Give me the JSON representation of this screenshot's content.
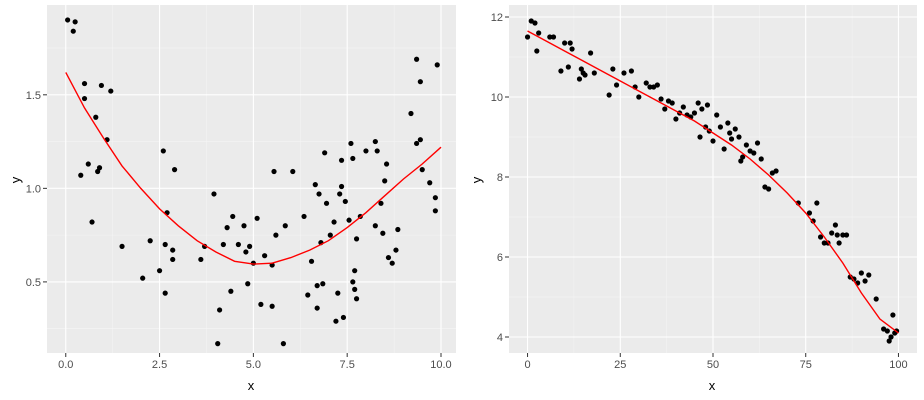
{
  "chart_data": [
    {
      "type": "scatter",
      "xlabel": "x",
      "ylabel": "y",
      "xlim": [
        -0.5,
        10.4
      ],
      "ylim": [
        0.12,
        1.98
      ],
      "xticks": [
        0.0,
        2.5,
        5.0,
        7.5,
        10.0
      ],
      "xtick_labels": [
        "0.0",
        "2.5",
        "5.0",
        "7.5",
        "10.0"
      ],
      "yticks": [
        0.5,
        1.0,
        1.5
      ],
      "ytick_labels": [
        "0.5",
        "1.0",
        "1.5"
      ],
      "grid": true,
      "fit_color": "#ff0000",
      "point_color": "#000000",
      "points": [
        [
          0.05,
          1.9
        ],
        [
          0.2,
          1.84
        ],
        [
          0.25,
          1.89
        ],
        [
          0.4,
          1.07
        ],
        [
          0.5,
          1.56
        ],
        [
          0.5,
          1.48
        ],
        [
          0.6,
          1.13
        ],
        [
          0.7,
          0.82
        ],
        [
          0.8,
          1.38
        ],
        [
          0.85,
          1.09
        ],
        [
          0.95,
          1.55
        ],
        [
          0.9,
          1.11
        ],
        [
          1.1,
          1.26
        ],
        [
          1.2,
          1.52
        ],
        [
          1.5,
          0.69
        ],
        [
          2.05,
          0.52
        ],
        [
          2.25,
          0.72
        ],
        [
          2.5,
          0.56
        ],
        [
          2.6,
          1.2
        ],
        [
          2.65,
          0.44
        ],
        [
          2.65,
          0.7
        ],
        [
          2.7,
          0.87
        ],
        [
          2.85,
          0.67
        ],
        [
          2.9,
          1.1
        ],
        [
          2.85,
          0.62
        ],
        [
          3.6,
          0.62
        ],
        [
          3.7,
          0.69
        ],
        [
          3.95,
          0.97
        ],
        [
          4.05,
          0.17
        ],
        [
          4.1,
          0.35
        ],
        [
          4.2,
          0.7
        ],
        [
          4.3,
          0.79
        ],
        [
          4.4,
          0.45
        ],
        [
          4.45,
          0.85
        ],
        [
          4.6,
          0.7
        ],
        [
          4.75,
          0.8
        ],
        [
          4.8,
          0.66
        ],
        [
          4.85,
          0.49
        ],
        [
          4.9,
          0.69
        ],
        [
          5.0,
          0.6
        ],
        [
          5.1,
          0.84
        ],
        [
          5.2,
          0.38
        ],
        [
          5.3,
          0.64
        ],
        [
          5.5,
          0.37
        ],
        [
          5.5,
          0.59
        ],
        [
          5.55,
          1.09
        ],
        [
          5.6,
          0.75
        ],
        [
          5.8,
          0.17
        ],
        [
          5.85,
          0.8
        ],
        [
          6.05,
          1.09
        ],
        [
          6.35,
          0.85
        ],
        [
          6.45,
          0.43
        ],
        [
          6.55,
          0.61
        ],
        [
          6.65,
          1.02
        ],
        [
          6.7,
          0.36
        ],
        [
          6.7,
          0.48
        ],
        [
          6.75,
          0.97
        ],
        [
          6.8,
          0.71
        ],
        [
          6.85,
          0.49
        ],
        [
          6.9,
          1.19
        ],
        [
          6.95,
          0.92
        ],
        [
          7.05,
          0.75
        ],
        [
          7.15,
          0.82
        ],
        [
          7.2,
          0.29
        ],
        [
          7.25,
          0.44
        ],
        [
          7.3,
          0.97
        ],
        [
          7.35,
          1.15
        ],
        [
          7.35,
          1.01
        ],
        [
          7.4,
          0.31
        ],
        [
          7.45,
          0.93
        ],
        [
          7.55,
          0.83
        ],
        [
          7.6,
          1.24
        ],
        [
          7.65,
          0.5
        ],
        [
          7.65,
          1.16
        ],
        [
          7.7,
          0.56
        ],
        [
          7.75,
          0.41
        ],
        [
          7.7,
          0.46
        ],
        [
          7.75,
          0.73
        ],
        [
          7.85,
          0.85
        ],
        [
          8.0,
          1.2
        ],
        [
          8.25,
          0.8
        ],
        [
          8.25,
          1.25
        ],
        [
          8.3,
          1.2
        ],
        [
          8.4,
          0.92
        ],
        [
          8.45,
          0.76
        ],
        [
          8.5,
          1.04
        ],
        [
          8.55,
          1.13
        ],
        [
          8.6,
          0.63
        ],
        [
          8.7,
          0.6
        ],
        [
          8.8,
          0.67
        ],
        [
          8.85,
          0.78
        ],
        [
          9.2,
          1.4
        ],
        [
          9.35,
          1.24
        ],
        [
          9.35,
          1.69
        ],
        [
          9.45,
          1.57
        ],
        [
          9.45,
          1.26
        ],
        [
          9.5,
          1.1
        ],
        [
          9.7,
          1.03
        ],
        [
          9.85,
          0.95
        ],
        [
          9.85,
          0.88
        ],
        [
          9.9,
          1.66
        ]
      ],
      "fit": [
        [
          0.0,
          1.62
        ],
        [
          0.5,
          1.43
        ],
        [
          1.0,
          1.27
        ],
        [
          1.5,
          1.12
        ],
        [
          2.0,
          1.0
        ],
        [
          2.5,
          0.89
        ],
        [
          3.0,
          0.8
        ],
        [
          3.5,
          0.72
        ],
        [
          4.0,
          0.66
        ],
        [
          4.5,
          0.61
        ],
        [
          5.0,
          0.595
        ],
        [
          5.5,
          0.6
        ],
        [
          6.0,
          0.63
        ],
        [
          6.5,
          0.67
        ],
        [
          7.0,
          0.72
        ],
        [
          7.5,
          0.79
        ],
        [
          8.0,
          0.87
        ],
        [
          8.5,
          0.96
        ],
        [
          9.0,
          1.05
        ],
        [
          9.5,
          1.13
        ],
        [
          10.0,
          1.22
        ]
      ]
    },
    {
      "type": "scatter",
      "xlabel": "x",
      "ylabel": "y",
      "xlim": [
        -5,
        105
      ],
      "ylim": [
        3.6,
        12.3
      ],
      "xticks": [
        0,
        25,
        50,
        75,
        100
      ],
      "xtick_labels": [
        "0",
        "25",
        "50",
        "75",
        "100"
      ],
      "yticks": [
        4,
        6,
        8,
        10,
        12
      ],
      "ytick_labels": [
        "4",
        "6",
        "8",
        "10",
        "12"
      ],
      "grid": true,
      "fit_color": "#ff0000",
      "point_color": "#000000",
      "points": [
        [
          0,
          11.5
        ],
        [
          1,
          11.9
        ],
        [
          2,
          11.85
        ],
        [
          2.5,
          11.15
        ],
        [
          3,
          11.6
        ],
        [
          6,
          11.5
        ],
        [
          7,
          11.5
        ],
        [
          9,
          10.65
        ],
        [
          10,
          11.35
        ],
        [
          11,
          10.75
        ],
        [
          11.5,
          11.35
        ],
        [
          12,
          11.2
        ],
        [
          14,
          10.45
        ],
        [
          14.5,
          10.7
        ],
        [
          15,
          10.6
        ],
        [
          15.5,
          10.55
        ],
        [
          17,
          11.1
        ],
        [
          18,
          10.6
        ],
        [
          22,
          10.05
        ],
        [
          23,
          10.7
        ],
        [
          24,
          10.3
        ],
        [
          26,
          10.6
        ],
        [
          28,
          10.65
        ],
        [
          29,
          10.25
        ],
        [
          30,
          10.0
        ],
        [
          32,
          10.35
        ],
        [
          33,
          10.25
        ],
        [
          34,
          10.25
        ],
        [
          35,
          10.3
        ],
        [
          36,
          9.95
        ],
        [
          37,
          9.7
        ],
        [
          38,
          9.9
        ],
        [
          39,
          9.85
        ],
        [
          40,
          9.45
        ],
        [
          41,
          9.6
        ],
        [
          42,
          9.75
        ],
        [
          43,
          9.55
        ],
        [
          44,
          9.5
        ],
        [
          45,
          9.6
        ],
        [
          46,
          9.85
        ],
        [
          46.5,
          9.0
        ],
        [
          47,
          9.7
        ],
        [
          48,
          9.25
        ],
        [
          48.5,
          9.8
        ],
        [
          49,
          9.15
        ],
        [
          50,
          8.9
        ],
        [
          51,
          9.55
        ],
        [
          52,
          9.25
        ],
        [
          53,
          8.7
        ],
        [
          54,
          9.35
        ],
        [
          54.5,
          9.1
        ],
        [
          55,
          8.95
        ],
        [
          56,
          9.2
        ],
        [
          57,
          9.0
        ],
        [
          57.5,
          8.4
        ],
        [
          58,
          8.5
        ],
        [
          59,
          8.8
        ],
        [
          60,
          8.65
        ],
        [
          61,
          8.6
        ],
        [
          62,
          8.85
        ],
        [
          63,
          8.45
        ],
        [
          64,
          7.75
        ],
        [
          65,
          7.7
        ],
        [
          66,
          8.1
        ],
        [
          67,
          8.15
        ],
        [
          73,
          7.35
        ],
        [
          76,
          7.1
        ],
        [
          77,
          6.9
        ],
        [
          78,
          7.35
        ],
        [
          79,
          6.5
        ],
        [
          80,
          6.35
        ],
        [
          81,
          6.35
        ],
        [
          82,
          6.6
        ],
        [
          83,
          6.8
        ],
        [
          83.5,
          6.55
        ],
        [
          84,
          6.35
        ],
        [
          85,
          6.55
        ],
        [
          86,
          6.55
        ],
        [
          87,
          5.5
        ],
        [
          88,
          5.45
        ],
        [
          89,
          5.35
        ],
        [
          90,
          5.6
        ],
        [
          91,
          5.4
        ],
        [
          92,
          5.55
        ],
        [
          94,
          4.95
        ],
        [
          96,
          4.2
        ],
        [
          97,
          4.15
        ],
        [
          97.5,
          3.9
        ],
        [
          98,
          4.0
        ],
        [
          98.5,
          4.55
        ],
        [
          99,
          4.1
        ],
        [
          99.5,
          4.15
        ]
      ],
      "fit": [
        [
          0,
          11.65
        ],
        [
          5,
          11.4
        ],
        [
          10,
          11.15
        ],
        [
          15,
          10.9
        ],
        [
          20,
          10.65
        ],
        [
          25,
          10.4
        ],
        [
          30,
          10.15
        ],
        [
          35,
          9.9
        ],
        [
          40,
          9.65
        ],
        [
          45,
          9.4
        ],
        [
          50,
          9.1
        ],
        [
          55,
          8.8
        ],
        [
          60,
          8.45
        ],
        [
          65,
          8.05
        ],
        [
          70,
          7.6
        ],
        [
          75,
          7.1
        ],
        [
          80,
          6.5
        ],
        [
          85,
          5.85
        ],
        [
          90,
          5.1
        ],
        [
          95,
          4.45
        ],
        [
          100,
          4.1
        ]
      ]
    }
  ]
}
